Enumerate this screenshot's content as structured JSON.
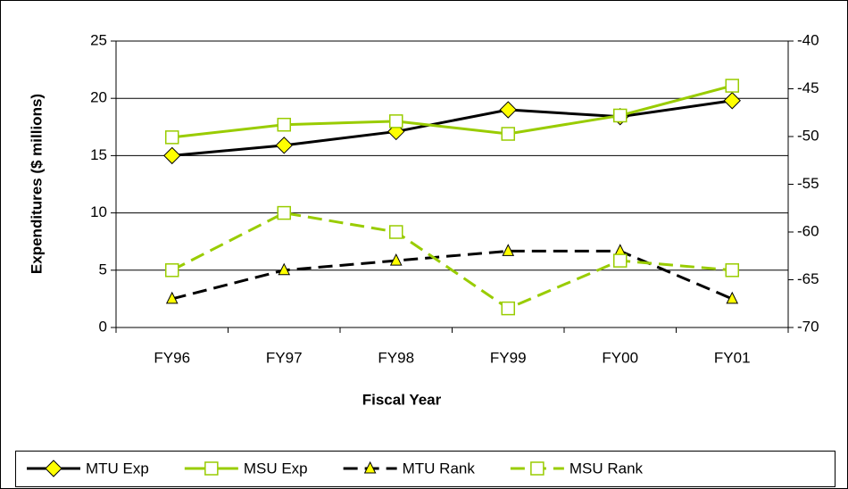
{
  "chart_data": {
    "type": "line",
    "x_label": "Fiscal Year",
    "y_label": "Expenditures ($ millions)",
    "categories": [
      "FY96",
      "FY97",
      "FY98",
      "FY99",
      "FY00",
      "FY01"
    ],
    "ylim": [
      0,
      25
    ],
    "yticks": [
      0,
      5,
      10,
      15,
      20,
      25
    ],
    "y2lim": [
      -70,
      -40
    ],
    "y2ticks": [
      -70,
      -65,
      -60,
      -55,
      -50,
      -45,
      -40
    ],
    "grid": true,
    "legend": "bottom",
    "series": [
      {
        "name": "MTU Exp",
        "color": "#000000",
        "marker": "diamond",
        "dashed": false,
        "values": [
          15.0,
          15.9,
          17.1,
          19.0,
          18.4,
          19.8
        ]
      },
      {
        "name": "MSU Exp",
        "color": "#99cc00",
        "marker": "square",
        "dashed": false,
        "values": [
          16.6,
          17.7,
          18.0,
          16.9,
          18.5,
          21.1
        ]
      },
      {
        "name": "MTU Rank",
        "color": "#000000",
        "marker": "triangle",
        "dashed": true,
        "axis": "y2",
        "values": [
          -67,
          -64,
          -63,
          -62,
          -62,
          -67
        ]
      },
      {
        "name": "MSU Rank",
        "color": "#99cc00",
        "marker": "square",
        "dashed": true,
        "axis": "y2",
        "values": [
          -64,
          -58,
          -60,
          -68,
          -63,
          -64
        ]
      }
    ]
  }
}
